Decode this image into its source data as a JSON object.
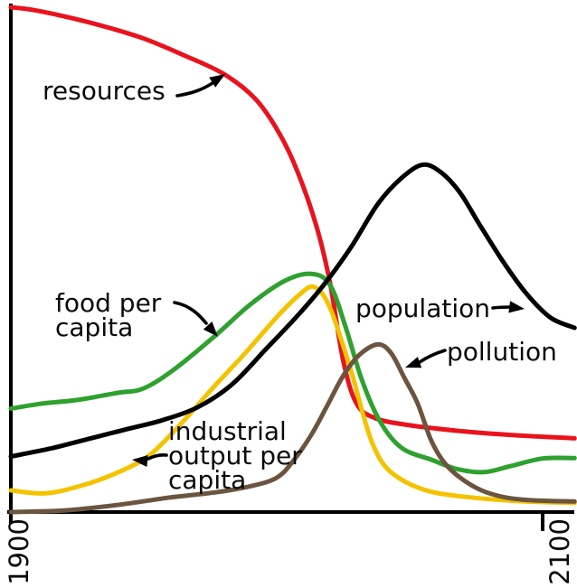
{
  "figure": {
    "background": "#ffffff",
    "labels": {
      "resources": "resources",
      "food_per_capita": "food per\ncapita",
      "population": "population",
      "pollution": "pollution",
      "industrial_output": "industrial\noutput per\ncapita"
    },
    "x_ticks": [
      "1900",
      "2100"
    ]
  },
  "chart_data": {
    "type": "line",
    "title": "",
    "xlabel": "",
    "ylabel": "",
    "x_range": [
      1900,
      2100
    ],
    "ylim": [
      0,
      1.05
    ],
    "grid": false,
    "legend_position": "inline labels with arrows pointing to curves",
    "x_tick_labels": [
      "1900",
      "2100"
    ],
    "y_tick_labels": [],
    "note": "y values are normalized 0-1 (no numeric y scale shown in figure); curves extend slightly past the 2100 tick",
    "series": [
      {
        "key": "resources",
        "name": "resources",
        "color": "#e8131d",
        "points": [
          [
            1900,
            1.0
          ],
          [
            1908,
            0.995
          ],
          [
            1920,
            0.982
          ],
          [
            1935,
            0.962
          ],
          [
            1950,
            0.938
          ],
          [
            1965,
            0.905
          ],
          [
            1980,
            0.868
          ],
          [
            1992,
            0.818
          ],
          [
            2001,
            0.75
          ],
          [
            2008,
            0.672
          ],
          [
            2015,
            0.565
          ],
          [
            2020,
            0.455
          ],
          [
            2025,
            0.3
          ],
          [
            2030,
            0.215
          ],
          [
            2037,
            0.186
          ],
          [
            2050,
            0.172
          ],
          [
            2070,
            0.16
          ],
          [
            2090,
            0.152
          ],
          [
            2112,
            0.146
          ]
        ]
      },
      {
        "key": "industrial",
        "name": "industrial output per capita",
        "color": "#f3c300",
        "points": [
          [
            1900,
            0.043
          ],
          [
            1913,
            0.037
          ],
          [
            1927,
            0.053
          ],
          [
            1940,
            0.078
          ],
          [
            1952,
            0.112
          ],
          [
            1964,
            0.175
          ],
          [
            1976,
            0.246
          ],
          [
            1988,
            0.314
          ],
          [
            2000,
            0.386
          ],
          [
            2008,
            0.428
          ],
          [
            2014,
            0.446
          ],
          [
            2020,
            0.405
          ],
          [
            2028,
            0.279
          ],
          [
            2032,
            0.202
          ],
          [
            2036,
            0.136
          ],
          [
            2041,
            0.089
          ],
          [
            2049,
            0.058
          ],
          [
            2059,
            0.039
          ],
          [
            2073,
            0.029
          ],
          [
            2090,
            0.022
          ],
          [
            2112,
            0.018
          ]
        ]
      },
      {
        "key": "food",
        "name": "food per capita",
        "color": "#2ea12e",
        "points": [
          [
            1900,
            0.205
          ],
          [
            1912,
            0.215
          ],
          [
            1925,
            0.222
          ],
          [
            1940,
            0.236
          ],
          [
            1950,
            0.245
          ],
          [
            1962,
            0.285
          ],
          [
            1977,
            0.35
          ],
          [
            1990,
            0.411
          ],
          [
            2003,
            0.458
          ],
          [
            2013,
            0.472
          ],
          [
            2020,
            0.45
          ],
          [
            2026,
            0.365
          ],
          [
            2032,
            0.262
          ],
          [
            2039,
            0.178
          ],
          [
            2047,
            0.127
          ],
          [
            2058,
            0.104
          ],
          [
            2068,
            0.085
          ],
          [
            2078,
            0.079
          ],
          [
            2088,
            0.091
          ],
          [
            2100,
            0.106
          ],
          [
            2112,
            0.107
          ]
        ]
      },
      {
        "key": "pollution",
        "name": "pollution",
        "color": "#6b5540",
        "points": [
          [
            1900,
            0.0
          ],
          [
            1920,
            0.003
          ],
          [
            1940,
            0.014
          ],
          [
            1960,
            0.029
          ],
          [
            1977,
            0.039
          ],
          [
            1990,
            0.051
          ],
          [
            2000,
            0.068
          ],
          [
            2006,
            0.1
          ],
          [
            2013,
            0.153
          ],
          [
            2019,
            0.211
          ],
          [
            2025,
            0.27
          ],
          [
            2031,
            0.311
          ],
          [
            2038,
            0.332
          ],
          [
            2043,
            0.315
          ],
          [
            2048,
            0.266
          ],
          [
            2053,
            0.215
          ],
          [
            2058,
            0.143
          ],
          [
            2063,
            0.098
          ],
          [
            2069,
            0.068
          ],
          [
            2077,
            0.043
          ],
          [
            2086,
            0.029
          ],
          [
            2097,
            0.023
          ],
          [
            2112,
            0.021
          ]
        ]
      },
      {
        "key": "population",
        "name": "population",
        "color": "#000000",
        "points": [
          [
            1900,
            0.11
          ],
          [
            1915,
            0.126
          ],
          [
            1930,
            0.146
          ],
          [
            1945,
            0.166
          ],
          [
            1957,
            0.182
          ],
          [
            1970,
            0.207
          ],
          [
            1983,
            0.252
          ],
          [
            1996,
            0.323
          ],
          [
            2008,
            0.39
          ],
          [
            2018,
            0.452
          ],
          [
            2028,
            0.525
          ],
          [
            2038,
            0.61
          ],
          [
            2047,
            0.662
          ],
          [
            2055,
            0.688
          ],
          [
            2062,
            0.672
          ],
          [
            2069,
            0.632
          ],
          [
            2076,
            0.572
          ],
          [
            2085,
            0.497
          ],
          [
            2094,
            0.432
          ],
          [
            2103,
            0.385
          ],
          [
            2112,
            0.365
          ]
        ]
      }
    ]
  }
}
